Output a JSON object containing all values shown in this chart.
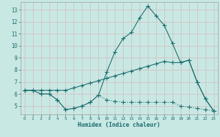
{
  "xlabel": "Humidex (Indice chaleur)",
  "bg_color": "#c8e8e4",
  "grid_color": "#d4b8b8",
  "line_color": "#1a6b6b",
  "xlim": [
    -0.5,
    23.5
  ],
  "ylim": [
    4.3,
    13.6
  ],
  "yticks": [
    5,
    6,
    7,
    8,
    9,
    10,
    11,
    12,
    13
  ],
  "xticks": [
    0,
    1,
    2,
    3,
    4,
    5,
    6,
    7,
    8,
    9,
    10,
    11,
    12,
    13,
    14,
    15,
    16,
    17,
    18,
    19,
    20,
    21,
    22,
    23
  ],
  "series1_x": [
    0,
    1,
    2,
    3,
    4,
    5,
    6,
    7,
    8,
    9,
    10,
    11,
    12,
    13,
    14,
    15,
    16,
    17,
    18,
    19,
    20,
    21,
    22,
    23
  ],
  "series1_y": [
    6.3,
    6.3,
    6.0,
    6.0,
    5.5,
    4.7,
    4.8,
    5.0,
    5.3,
    5.9,
    7.8,
    9.5,
    10.6,
    11.1,
    12.3,
    13.3,
    12.5,
    11.7,
    10.2,
    8.6,
    8.8,
    7.0,
    5.6,
    4.6
  ],
  "series2_x": [
    0,
    1,
    2,
    3,
    4,
    5,
    6,
    7,
    8,
    9,
    10,
    11,
    12,
    13,
    14,
    15,
    16,
    17,
    18,
    19,
    20,
    21,
    22,
    23
  ],
  "series2_y": [
    6.3,
    6.3,
    6.3,
    6.3,
    6.3,
    6.3,
    6.5,
    6.7,
    6.9,
    7.1,
    7.3,
    7.5,
    7.7,
    7.9,
    8.1,
    8.3,
    8.5,
    8.7,
    8.6,
    8.6,
    8.8,
    7.0,
    5.6,
    4.6
  ],
  "series3_x": [
    0,
    1,
    2,
    3,
    4,
    5,
    6,
    7,
    8,
    9,
    10,
    11,
    12,
    13,
    14,
    15,
    16,
    17,
    18,
    19,
    20,
    21,
    22,
    23
  ],
  "series3_y": [
    6.3,
    6.3,
    6.0,
    6.0,
    5.5,
    4.7,
    4.8,
    5.0,
    5.3,
    5.9,
    5.5,
    5.4,
    5.3,
    5.3,
    5.3,
    5.3,
    5.3,
    5.3,
    5.3,
    5.0,
    4.9,
    4.8,
    4.7,
    4.6
  ]
}
